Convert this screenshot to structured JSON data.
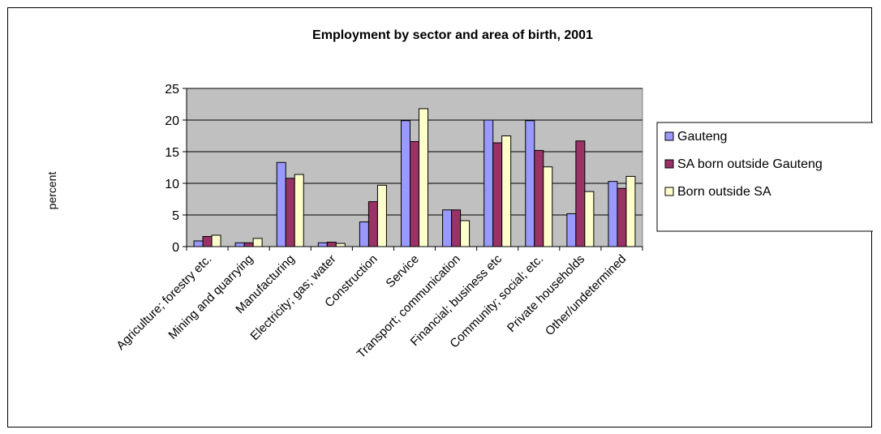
{
  "chart_data": {
    "type": "bar",
    "title": "Employment by sector and area of birth, 2001",
    "ylabel": "percent",
    "xlabel": "",
    "ylim": [
      0,
      25
    ],
    "yticks": [
      0,
      5,
      10,
      15,
      20,
      25
    ],
    "grid": true,
    "legend_position": "right",
    "plot_background": "#c0c0c0",
    "categories": [
      "Agriculture; forestry etc.",
      "Mining and quarrying",
      "Manufacturing",
      "Electricity; gas; water",
      "Construction",
      "Service",
      "Transport; communication",
      "Financial; business etc",
      "Community; social; etc.",
      "Private households",
      "Other/undetermined"
    ],
    "series": [
      {
        "name": "Gauteng",
        "color": "#9999ff",
        "values": [
          0.9,
          0.6,
          13.3,
          0.6,
          3.9,
          19.9,
          5.8,
          20.0,
          19.9,
          5.2,
          10.3
        ]
      },
      {
        "name": "SA born outside Gauteng",
        "color": "#993366",
        "values": [
          1.6,
          0.6,
          10.8,
          0.7,
          7.1,
          16.6,
          5.8,
          16.4,
          15.2,
          16.7,
          9.2
        ]
      },
      {
        "name": "Born outside SA",
        "color": "#ffffcc",
        "values": [
          1.8,
          1.3,
          11.4,
          0.5,
          9.7,
          21.8,
          4.1,
          17.5,
          12.6,
          8.7,
          11.1
        ]
      }
    ]
  }
}
